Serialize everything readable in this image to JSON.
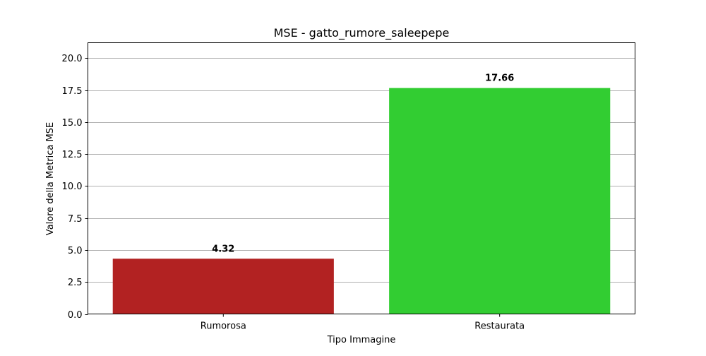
{
  "chart_data": {
    "type": "bar",
    "title": "MSE - gatto_rumore_saleepepe",
    "xlabel": "Tipo Immagine",
    "ylabel": "Valore della Metrica MSE",
    "categories": [
      "Rumorosa",
      "Restaurata"
    ],
    "values": [
      4.32,
      17.66
    ],
    "value_labels": [
      "4.32",
      "17.66"
    ],
    "colors": [
      "#b22222",
      "#32cd32"
    ],
    "ylim": [
      0,
      21.2
    ],
    "yticks": [
      0,
      2.5,
      5,
      7.5,
      10,
      12.5,
      15,
      17.5,
      20
    ],
    "ytick_labels": [
      "0.0",
      "2.5",
      "5.0",
      "7.5",
      "10.0",
      "12.5",
      "15.0",
      "17.5",
      "20.0"
    ],
    "grid": "y"
  }
}
